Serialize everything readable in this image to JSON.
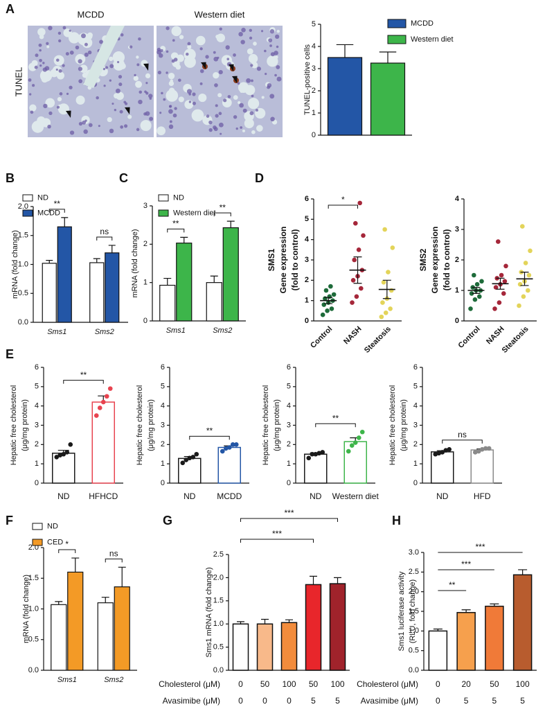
{
  "images": {
    "row_label": "TUNEL",
    "columns": [
      "MCDD",
      "Western diet"
    ]
  },
  "chart_data": [
    {
      "type": "bar",
      "panel": "A",
      "ylabel": [
        "TUNEL-positive cells"
      ],
      "categories": [
        null
      ],
      "series": [
        {
          "name": "MCDD",
          "color": "#2356a6",
          "values": [
            3.5
          ],
          "errors": [
            0.58
          ]
        },
        {
          "name": "Western diet",
          "color": "#3db54a",
          "values": [
            3.25
          ],
          "errors": [
            0.5
          ]
        }
      ],
      "ylim": [
        0,
        5
      ],
      "yticks": [
        0,
        1,
        2,
        3,
        4,
        5
      ]
    },
    {
      "type": "bar",
      "panel": "B",
      "ylabel": [
        "mRNA (fold change)"
      ],
      "categories": [
        "Sms1",
        "Sms2"
      ],
      "series": [
        {
          "name": "ND",
          "color": "#ffffff",
          "values": [
            1.02,
            1.03
          ],
          "errors": [
            0.05,
            0.07
          ]
        },
        {
          "name": "MCDD",
          "color": "#2356a6",
          "values": [
            1.65,
            1.2
          ],
          "errors": [
            0.16,
            0.13
          ]
        }
      ],
      "annotations": [
        "**",
        "ns"
      ],
      "ylim": [
        0,
        2
      ],
      "yticks": [
        {
          "value": 0,
          "label": "0.0"
        },
        {
          "value": 0.5,
          "label": "0.5"
        },
        {
          "value": 1,
          "label": "1.0"
        },
        {
          "value": 1.5,
          "label": "1.5"
        },
        {
          "value": 2,
          "label": "2.0"
        }
      ]
    },
    {
      "type": "bar",
      "panel": "C",
      "ylabel": [
        "mRNA (fold change)"
      ],
      "categories": [
        "Sms1",
        "Sms2"
      ],
      "series": [
        {
          "name": "ND",
          "color": "#ffffff",
          "values": [
            0.93,
            1.0
          ],
          "errors": [
            0.18,
            0.17
          ]
        },
        {
          "name": "Western diet",
          "color": "#3db54a",
          "values": [
            2.03,
            2.43
          ],
          "errors": [
            0.15,
            0.17
          ]
        }
      ],
      "annotations": [
        "**",
        "**"
      ],
      "ylim": [
        0,
        3
      ],
      "yticks": [
        0,
        1,
        2,
        3
      ]
    },
    {
      "type": "dotplot",
      "panel": "D",
      "ylabel": [
        "SMS1",
        "Gene expression",
        "(fold to control)"
      ],
      "categories": [
        "Control",
        "NASH",
        "Steatosis"
      ],
      "colors": [
        "#1e6b3a",
        "#a5273a",
        "#e3d45a"
      ],
      "points": [
        [
          0.3,
          0.5,
          0.6,
          0.8,
          0.9,
          1.0,
          1.1,
          1.2,
          1.3,
          1.5,
          1.7
        ],
        [
          0.9,
          1.2,
          1.6,
          2.0,
          2.2,
          2.5,
          3.0,
          3.5,
          4.2,
          4.8,
          5.8
        ],
        [
          0.2,
          0.4,
          0.6,
          0.9,
          1.1,
          1.5,
          1.9,
          2.4,
          3.6,
          4.5
        ]
      ],
      "means": [
        1.0,
        2.5,
        1.55
      ],
      "errors": [
        0.15,
        0.65,
        0.45
      ],
      "annotation": "*",
      "ylim": [
        0,
        6
      ],
      "yticks": [
        0,
        1,
        2,
        3,
        4,
        5,
        6
      ]
    },
    {
      "type": "dotplot",
      "ylabel": [
        "SMS2",
        "Gene expression",
        "(fold to control)"
      ],
      "categories": [
        "Control",
        "NASH",
        "Steatosis"
      ],
      "colors": [
        "#1e6b3a",
        "#a5273a",
        "#e3d45a"
      ],
      "points": [
        [
          0.4,
          0.7,
          0.8,
          0.9,
          1.0,
          1.0,
          1.1,
          1.2,
          1.3,
          1.5
        ],
        [
          0.4,
          0.6,
          0.9,
          1.1,
          1.2,
          1.3,
          1.4,
          1.5,
          1.8,
          2.6
        ],
        [
          0.5,
          0.8,
          1.0,
          1.2,
          1.3,
          1.5,
          1.6,
          1.9,
          2.3,
          3.1
        ]
      ],
      "means": [
        1.0,
        1.22,
        1.38
      ],
      "errors": [
        0.1,
        0.18,
        0.22
      ],
      "ylim": [
        0,
        4
      ],
      "yticks": [
        0,
        1,
        2,
        3,
        4
      ]
    },
    {
      "type": "bar",
      "panel": "E",
      "hollow": true,
      "ylabel": [
        "Hepatic free cholesterol",
        "(μg/mg protein)"
      ],
      "categories": [
        "ND",
        "HFHCD"
      ],
      "colors": [
        "#1a1a1a",
        "#e8434f"
      ],
      "values": [
        1.55,
        4.2
      ],
      "errors": [
        0.15,
        0.32
      ],
      "points": [
        [
          1.35,
          1.45,
          1.5,
          1.6,
          2.0
        ],
        [
          3.5,
          3.9,
          4.2,
          4.5,
          4.9
        ]
      ],
      "annotation": "**",
      "ylim": [
        0,
        6
      ],
      "yticks": [
        0,
        1,
        2,
        3,
        4,
        5,
        6
      ]
    },
    {
      "type": "bar",
      "hollow": true,
      "ylabel": [
        "Hepatic free cholesterol",
        "(μg/mg protein)"
      ],
      "categories": [
        "ND",
        "MCDD"
      ],
      "colors": [
        "#1a1a1a",
        "#2356a6"
      ],
      "values": [
        1.28,
        1.85
      ],
      "errors": [
        0.1,
        0.08
      ],
      "points": [
        [
          1.05,
          1.2,
          1.3,
          1.35,
          1.5
        ],
        [
          1.65,
          1.8,
          1.85,
          2.0,
          2.0
        ]
      ],
      "annotation": "**",
      "ylim": [
        0,
        6
      ],
      "yticks": [
        0,
        1,
        2,
        3,
        4,
        5,
        6
      ]
    },
    {
      "type": "bar",
      "hollow": true,
      "ylabel": [
        "Hepatic free cholesterol",
        "(μg/mg protein)"
      ],
      "categories": [
        "ND",
        "Western diet"
      ],
      "colors": [
        "#1a1a1a",
        "#3db54a"
      ],
      "values": [
        1.5,
        2.15
      ],
      "errors": [
        0.07,
        0.2
      ],
      "points": [
        [
          1.3,
          1.5,
          1.5,
          1.55,
          1.6
        ],
        [
          1.65,
          1.95,
          2.1,
          2.35,
          2.65
        ]
      ],
      "annotation": "**",
      "ylim": [
        0,
        6
      ],
      "yticks": [
        0,
        1,
        2,
        3,
        4,
        5,
        6
      ]
    },
    {
      "type": "bar",
      "hollow": true,
      "ylabel": [
        "Hepatic free cholesterol",
        "(μg/mg protein)"
      ],
      "categories": [
        "ND",
        "HFD"
      ],
      "colors": [
        "#1a1a1a",
        "#8a8a8a"
      ],
      "values": [
        1.62,
        1.72
      ],
      "errors": [
        0.06,
        0.05
      ],
      "points": [
        [
          1.5,
          1.55,
          1.6,
          1.7,
          1.75
        ],
        [
          1.6,
          1.65,
          1.75,
          1.8,
          1.8
        ]
      ],
      "annotation": "ns",
      "ylim": [
        0,
        6
      ],
      "yticks": [
        0,
        1,
        2,
        3,
        4,
        5,
        6
      ]
    },
    {
      "type": "bar",
      "panel": "F",
      "ylabel": [
        "mRNA (fold change)"
      ],
      "categories": [
        "Sms1",
        "Sms2"
      ],
      "series": [
        {
          "name": "ND",
          "color": "#ffffff",
          "values": [
            1.07,
            1.1
          ],
          "errors": [
            0.05,
            0.09
          ]
        },
        {
          "name": "CED",
          "color": "#f39a26",
          "values": [
            1.6,
            1.36
          ],
          "errors": [
            0.23,
            0.32
          ]
        }
      ],
      "annotations": [
        "*",
        "ns"
      ],
      "ylim": [
        0,
        2
      ],
      "yticks": [
        {
          "value": 0,
          "label": "0.0"
        },
        {
          "value": 0.5,
          "label": "0.5"
        },
        {
          "value": 1,
          "label": "1.0"
        },
        {
          "value": 1.5,
          "label": "1.5"
        },
        {
          "value": 2,
          "label": "2.0"
        }
      ]
    },
    {
      "type": "bar",
      "panel": "G",
      "ylabel": [
        "Sms1 mRNA (fold change)"
      ],
      "colors": [
        "#ffffff",
        "#f8b98a",
        "#f28c3c",
        "#e8262b",
        "#a0232b"
      ],
      "values": [
        1.0,
        1.0,
        1.03,
        1.85,
        1.87
      ],
      "errors": [
        0.05,
        0.1,
        0.06,
        0.18,
        0.13
      ],
      "table": [
        {
          "name": "Cholesterol (μM)",
          "values": [
            0,
            50,
            100,
            50,
            100
          ]
        },
        {
          "name": "Avasimibe (μM)",
          "values": [
            0,
            0,
            0,
            5,
            5
          ]
        }
      ],
      "annotations": [
        "***",
        "***"
      ],
      "ylim": [
        0,
        2.5
      ],
      "yticks": [
        {
          "value": 0,
          "label": "0.0"
        },
        {
          "value": 0.5,
          "label": "0.5"
        },
        {
          "value": 1,
          "label": "1.0"
        },
        {
          "value": 1.5,
          "label": "1.5"
        },
        {
          "value": 2,
          "label": "2.0"
        },
        {
          "value": 2.5,
          "label": "2.5"
        }
      ]
    },
    {
      "type": "bar",
      "panel": "H",
      "ylabel": [
        "Sms1 luciferase activity",
        "(RLU, fold change)"
      ],
      "colors": [
        "#ffffff",
        "#f6a04d",
        "#f07a38",
        "#b85c2e"
      ],
      "values": [
        1.0,
        1.47,
        1.63,
        2.43
      ],
      "errors": [
        0.05,
        0.07,
        0.06,
        0.13
      ],
      "table": [
        {
          "name": "Cholesterol (μM)",
          "values": [
            0,
            20,
            50,
            100
          ]
        },
        {
          "name": "Avasimibe (μM)",
          "values": [
            0,
            5,
            5,
            5
          ]
        }
      ],
      "annotations": [
        "**",
        "***",
        "***"
      ],
      "ylim": [
        0,
        3
      ],
      "yticks": [
        {
          "value": 0,
          "label": "0.0"
        },
        {
          "value": 0.5,
          "label": "0.5"
        },
        {
          "value": 1,
          "label": "1.0"
        },
        {
          "value": 1.5,
          "label": "1.5"
        },
        {
          "value": 2,
          "label": "2.0"
        },
        {
          "value": 2.5,
          "label": "2.5"
        },
        {
          "value": 3,
          "label": "3.0"
        }
      ]
    }
  ]
}
